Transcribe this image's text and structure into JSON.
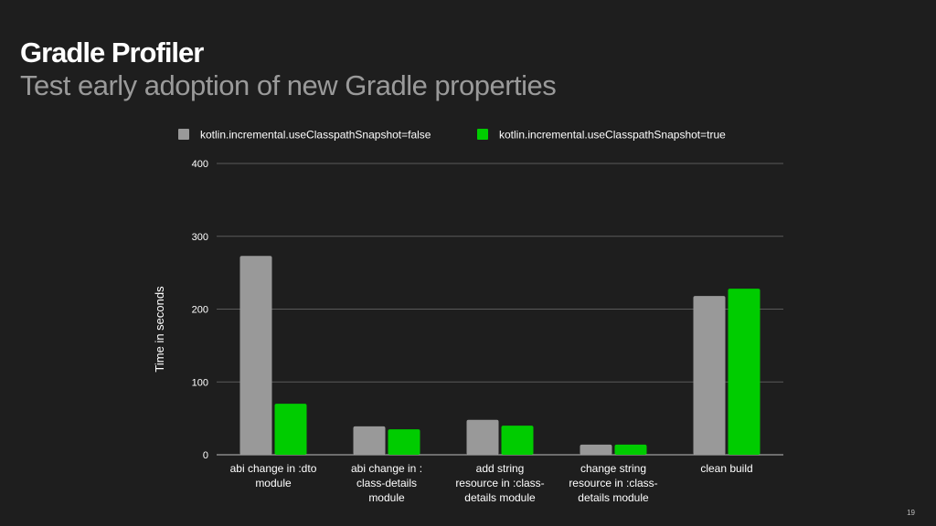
{
  "slide": {
    "title": "Gradle Profiler",
    "subtitle": "Test early adoption of new Gradle properties",
    "page_number": "19"
  },
  "colors": {
    "background": "#1e1e1e",
    "title": "#ffffff",
    "subtitle": "#9a9a9a",
    "gridline": "#5a5a5a",
    "axis_text": "#ffffff"
  },
  "chart_data": {
    "type": "bar",
    "title": "",
    "xlabel": "",
    "ylabel": "Time in seconds",
    "ylim": [
      0,
      400
    ],
    "yticks": [
      0,
      100,
      200,
      300,
      400
    ],
    "grid": true,
    "legend_position": "top",
    "categories": [
      [
        "abi change in :dto",
        "module"
      ],
      [
        "abi change in :",
        "class-details",
        "module"
      ],
      [
        "add string",
        "resource in :class-",
        "details module"
      ],
      [
        "change string",
        "resource in :class-",
        "details module"
      ],
      [
        "clean build"
      ]
    ],
    "series": [
      {
        "name": "kotlin.incremental.useClasspathSnapshot=false",
        "color": "#999999",
        "values": [
          273,
          39,
          48,
          14,
          218
        ]
      },
      {
        "name": "kotlin.incremental.useClasspathSnapshot=true",
        "color": "#00cc00",
        "values": [
          70,
          35,
          40,
          14,
          228
        ]
      }
    ]
  }
}
